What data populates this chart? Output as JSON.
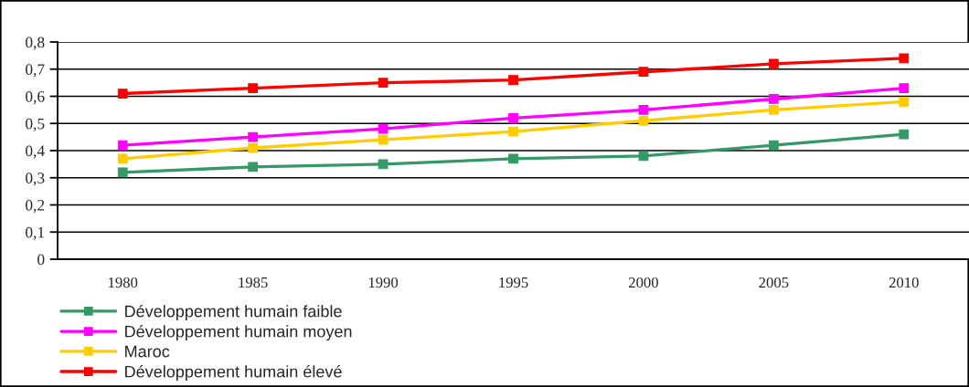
{
  "chart_data": {
    "type": "line",
    "categories": [
      "1980",
      "1985",
      "1990",
      "1995",
      "2000",
      "2005",
      "2010"
    ],
    "series": [
      {
        "name": "Développement humain faible",
        "color": "#339966",
        "values": [
          0.32,
          0.34,
          0.35,
          0.37,
          0.38,
          0.42,
          0.46
        ]
      },
      {
        "name": "Développement humain moyen",
        "color": "#ff00ff",
        "values": [
          0.42,
          0.45,
          0.48,
          0.52,
          0.55,
          0.59,
          0.63
        ]
      },
      {
        "name": "Maroc",
        "color": "#ffcc00",
        "values": [
          0.37,
          0.41,
          0.44,
          0.47,
          0.51,
          0.55,
          0.58
        ]
      },
      {
        "name": "Développement humain élevé",
        "color": "#ff0000",
        "values": [
          0.61,
          0.63,
          0.65,
          0.66,
          0.69,
          0.72,
          0.74
        ]
      }
    ],
    "ylim": [
      0,
      0.8
    ],
    "yticks": [
      0,
      {
        "value": 0.1,
        "label": "0,1"
      },
      {
        "value": 0.2,
        "label": "0,2"
      },
      {
        "value": 0.3,
        "label": "0,3"
      },
      {
        "value": 0.4,
        "label": "0,4"
      },
      {
        "value": 0.5,
        "label": "0,5"
      },
      {
        "value": 0.6,
        "label": "0,6"
      },
      {
        "value": 0.7,
        "label": "0,7"
      },
      {
        "value": 0.8,
        "label": "0,8"
      }
    ],
    "grid": "y",
    "legend": "bottom left",
    "marker": "square",
    "line_style": "solid"
  }
}
